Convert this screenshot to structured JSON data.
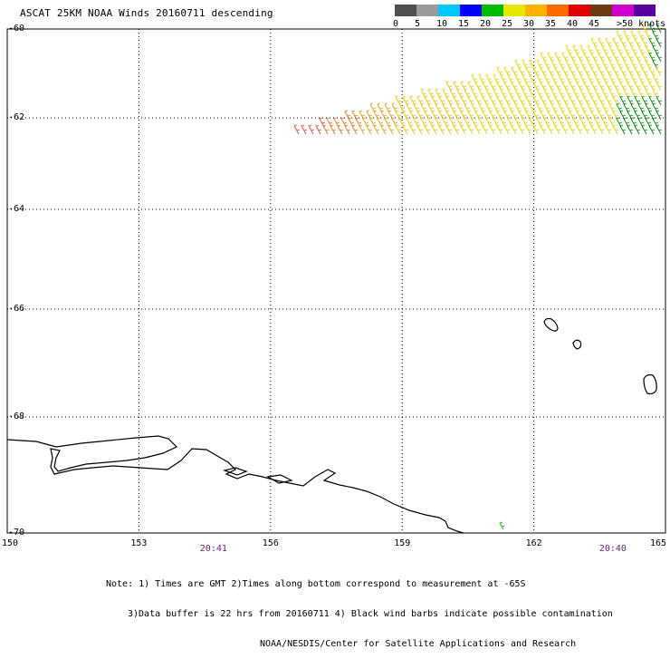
{
  "title": "ASCAT 25KM NOAA Winds 20160711 descending",
  "axes": {
    "lat_labels": [
      "-60",
      "-62",
      "-64",
      "-66",
      "-68",
      "-70"
    ],
    "lon_labels": [
      "150",
      "153",
      "156",
      "159",
      "162",
      "165"
    ],
    "lat_range": [
      -70,
      -60
    ],
    "lon_range": [
      150,
      165
    ],
    "grid": "dotted"
  },
  "times": [
    {
      "text": "20:41",
      "lon": 154.7
    },
    {
      "text": "20:40",
      "lon": 163.8
    }
  ],
  "colorbar": {
    "unit_label": ">50 knots",
    "labels": [
      "0",
      "5",
      "10",
      "15",
      "20",
      "25",
      "30",
      "35",
      "40",
      "45"
    ],
    "colors": [
      "#505050",
      "#9a9a9a",
      "#00c8ff",
      "#0000ff",
      "#00bb00",
      "#e6e600",
      "#ffb300",
      "#ff6a00",
      "#e00000",
      "#6b3b16",
      "#d000d0",
      "#5a00a0"
    ]
  },
  "notes": [
    "Note: 1) Times are GMT 2)Times along bottom correspond to measurement at -65S",
    "3)Data buffer is 22 hrs from 20160711 4) Black wind barbs indicate possible contamination",
    "NOAA/NESDIS/Center for Satellite Applications and Research"
  ],
  "icons": {
    "wind_barb": "wind-barb-icon"
  }
}
